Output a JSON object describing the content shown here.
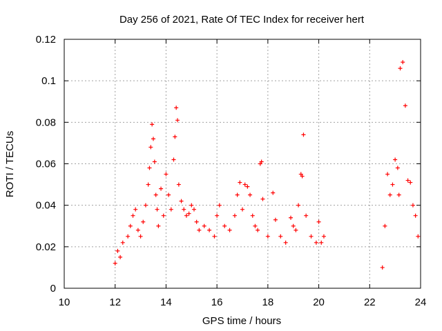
{
  "chart_data": {
    "type": "scatter",
    "title": "Day 256 of 2021, Rate Of TEC Index for receiver hert",
    "xlabel": "GPS time / hours",
    "ylabel": "ROTI / TECUs",
    "xlim": [
      10,
      24
    ],
    "ylim": [
      0,
      0.12
    ],
    "x_ticks": [
      "10",
      "12",
      "14",
      "16",
      "18",
      "20",
      "22",
      "24"
    ],
    "y_ticks": [
      "0",
      "0.02",
      "0.04",
      "0.06",
      "0.08",
      "0.1",
      "0.12"
    ],
    "grid": true,
    "legend": "none",
    "marker": "+",
    "color": "#ff0000",
    "series": [
      {
        "x": [
          12.0,
          12.1,
          12.2,
          12.3,
          12.5,
          12.6,
          12.7,
          12.8,
          12.9,
          13.0,
          13.1,
          13.2,
          13.3,
          13.35,
          13.4,
          13.45,
          13.5,
          13.55,
          13.6,
          13.65,
          13.7,
          13.8,
          13.9,
          14.0,
          14.1,
          14.2,
          14.3,
          14.35,
          14.4,
          14.45,
          14.5,
          14.6,
          14.7,
          14.8,
          14.9,
          15.0,
          15.1,
          15.2,
          15.3,
          15.5,
          15.7,
          15.9,
          16.0,
          16.1,
          16.3,
          16.5,
          16.7,
          16.8,
          16.9,
          17.0,
          17.1,
          17.2,
          17.3,
          17.4,
          17.5,
          17.6,
          17.7,
          17.75,
          17.8,
          18.0,
          18.2,
          18.3,
          18.5,
          18.7,
          18.9,
          19.0,
          19.1,
          19.2,
          19.3,
          19.35,
          19.4,
          19.5,
          19.7,
          19.9,
          20.0,
          20.1,
          20.2,
          22.5,
          22.6,
          22.7,
          22.8,
          22.9,
          23.0,
          23.1,
          23.15,
          23.2,
          23.3,
          23.4,
          23.5,
          23.6,
          23.7,
          23.8,
          23.9
        ],
        "y": [
          0.012,
          0.018,
          0.015,
          0.022,
          0.025,
          0.03,
          0.035,
          0.038,
          0.028,
          0.025,
          0.032,
          0.04,
          0.05,
          0.058,
          0.068,
          0.079,
          0.072,
          0.061,
          0.045,
          0.038,
          0.03,
          0.048,
          0.035,
          0.055,
          0.045,
          0.038,
          0.062,
          0.073,
          0.087,
          0.081,
          0.05,
          0.042,
          0.038,
          0.035,
          0.036,
          0.04,
          0.038,
          0.032,
          0.028,
          0.03,
          0.028,
          0.025,
          0.035,
          0.04,
          0.03,
          0.028,
          0.035,
          0.045,
          0.051,
          0.038,
          0.05,
          0.049,
          0.045,
          0.035,
          0.03,
          0.028,
          0.06,
          0.061,
          0.043,
          0.025,
          0.046,
          0.033,
          0.025,
          0.022,
          0.034,
          0.03,
          0.028,
          0.04,
          0.055,
          0.054,
          0.074,
          0.035,
          0.025,
          0.022,
          0.032,
          0.022,
          0.025,
          0.01,
          0.03,
          0.055,
          0.045,
          0.05,
          0.062,
          0.058,
          0.045,
          0.106,
          0.109,
          0.088,
          0.052,
          0.051,
          0.04,
          0.035,
          0.025
        ]
      }
    ]
  }
}
